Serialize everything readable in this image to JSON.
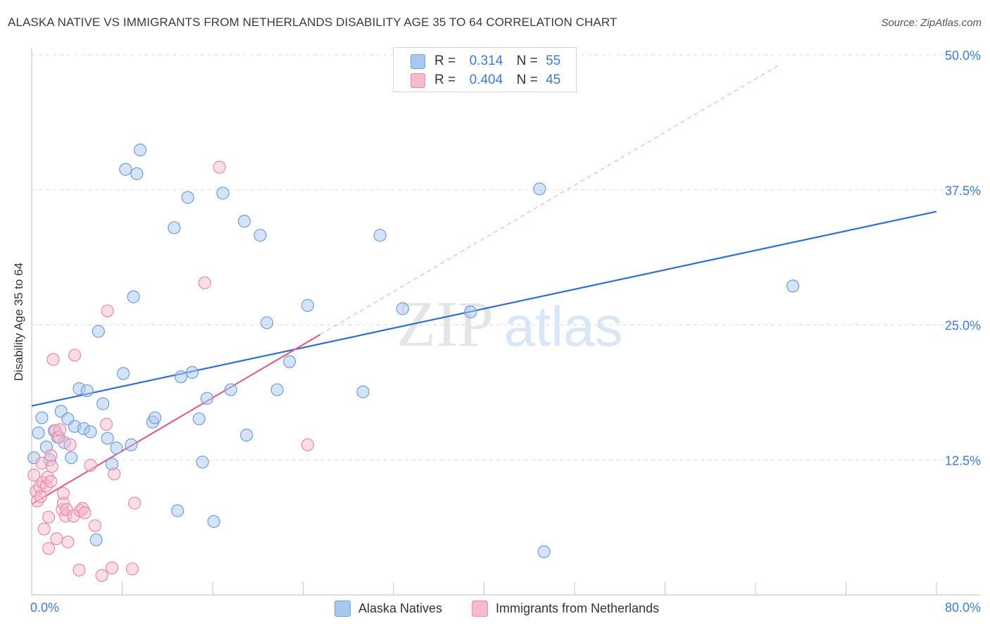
{
  "title": "ALASKA NATIVE VS IMMIGRANTS FROM NETHERLANDS DISABILITY AGE 35 TO 64 CORRELATION CHART",
  "source": "Source: ZipAtlas.com",
  "watermark": {
    "zip": "ZIP",
    "atlas": "atlas"
  },
  "legend_top": {
    "rows": [
      {
        "r_label": "R =",
        "r_value": "0.314",
        "n_label": "N =",
        "n_value": "55"
      },
      {
        "r_label": "R =",
        "r_value": "0.404",
        "n_label": "N =",
        "n_value": "45"
      }
    ]
  },
  "legend_bottom": {
    "items": [
      {
        "label": "Alaska Natives"
      },
      {
        "label": "Immigrants from Netherlands"
      }
    ]
  },
  "chart_data": {
    "type": "scatter",
    "title": "ALASKA NATIVE VS IMMIGRANTS FROM NETHERLANDS DISABILITY AGE 35 TO 64 CORRELATION CHART",
    "xlabel": "",
    "ylabel": "Disability Age 35 to 64",
    "xlim": [
      0,
      80
    ],
    "ylim": [
      0,
      50
    ],
    "x_tick_labels": [
      "0.0%",
      "80.0%"
    ],
    "y_tick_labels": [
      "12.5%",
      "25.0%",
      "37.5%",
      "50.0%"
    ],
    "y_ticks": [
      12.5,
      25.0,
      37.5,
      50.0
    ],
    "x_minor_ticks": [
      8,
      16,
      24,
      32,
      40,
      48,
      56,
      64,
      72,
      80
    ],
    "grid": true,
    "legend_position": "bottom",
    "series": [
      {
        "name": "Alaska Natives",
        "color": "#a9c8ef",
        "stroke": "#6e9fd9",
        "trend_color": "#2e6fd0",
        "r": "0.314",
        "n": "55",
        "trend": {
          "x": [
            0,
            80
          ],
          "y": [
            17.5,
            35.5
          ]
        },
        "points": [
          [
            0.2,
            12.7
          ],
          [
            0.6,
            15.0
          ],
          [
            0.9,
            16.4
          ],
          [
            1.3,
            13.7
          ],
          [
            1.6,
            12.5
          ],
          [
            2.0,
            15.2
          ],
          [
            2.3,
            14.6
          ],
          [
            2.6,
            17.0
          ],
          [
            2.9,
            14.1
          ],
          [
            3.2,
            16.3
          ],
          [
            3.5,
            12.7
          ],
          [
            3.8,
            15.6
          ],
          [
            4.2,
            19.1
          ],
          [
            4.6,
            15.4
          ],
          [
            4.9,
            18.9
          ],
          [
            5.2,
            15.1
          ],
          [
            5.7,
            5.1
          ],
          [
            5.9,
            24.4
          ],
          [
            6.3,
            17.7
          ],
          [
            6.7,
            14.5
          ],
          [
            7.1,
            12.1
          ],
          [
            7.5,
            13.6
          ],
          [
            8.1,
            20.5
          ],
          [
            8.3,
            39.4
          ],
          [
            8.8,
            13.9
          ],
          [
            9.0,
            27.6
          ],
          [
            9.3,
            39.0
          ],
          [
            9.6,
            41.2
          ],
          [
            10.7,
            16.0
          ],
          [
            10.9,
            16.4
          ],
          [
            12.6,
            34.0
          ],
          [
            12.9,
            7.8
          ],
          [
            13.2,
            20.2
          ],
          [
            13.8,
            36.8
          ],
          [
            14.2,
            20.6
          ],
          [
            14.8,
            16.3
          ],
          [
            15.1,
            12.3
          ],
          [
            15.5,
            18.2
          ],
          [
            16.1,
            6.8
          ],
          [
            16.9,
            37.2
          ],
          [
            17.6,
            19.0
          ],
          [
            18.8,
            34.6
          ],
          [
            19.0,
            14.8
          ],
          [
            20.2,
            33.3
          ],
          [
            20.8,
            25.2
          ],
          [
            21.7,
            19.0
          ],
          [
            22.8,
            21.6
          ],
          [
            24.4,
            26.8
          ],
          [
            29.3,
            18.8
          ],
          [
            30.8,
            33.3
          ],
          [
            32.8,
            26.5
          ],
          [
            38.8,
            26.2
          ],
          [
            44.9,
            37.6
          ],
          [
            45.3,
            4.0
          ],
          [
            67.3,
            28.6
          ]
        ]
      },
      {
        "name": "Immigrants from Netherlands",
        "color": "#f6bccd",
        "stroke": "#e98aa8",
        "trend_color": "#e0608a",
        "r": "0.404",
        "n": "45",
        "trend": {
          "x": [
            0,
            25.5
          ],
          "y": [
            8.4,
            24.1
          ]
        },
        "trend_extension": {
          "x": [
            25.5,
            66.0
          ],
          "y": [
            24.1,
            49.0
          ]
        },
        "points": [
          [
            0.2,
            11.1
          ],
          [
            0.4,
            9.6
          ],
          [
            0.5,
            8.7
          ],
          [
            0.7,
            10.0
          ],
          [
            0.8,
            9.1
          ],
          [
            0.9,
            12.2
          ],
          [
            1.0,
            10.4
          ],
          [
            1.1,
            6.1
          ],
          [
            1.3,
            10.1
          ],
          [
            1.4,
            10.9
          ],
          [
            1.5,
            7.2
          ],
          [
            1.5,
            4.3
          ],
          [
            1.7,
            10.5
          ],
          [
            1.7,
            12.9
          ],
          [
            1.8,
            11.9
          ],
          [
            1.9,
            21.8
          ],
          [
            2.1,
            15.2
          ],
          [
            2.2,
            5.2
          ],
          [
            2.4,
            14.6
          ],
          [
            2.5,
            15.3
          ],
          [
            2.7,
            7.9
          ],
          [
            2.8,
            8.5
          ],
          [
            2.8,
            9.4
          ],
          [
            3.0,
            7.3
          ],
          [
            3.1,
            7.9
          ],
          [
            3.2,
            4.9
          ],
          [
            3.4,
            13.9
          ],
          [
            3.7,
            7.3
          ],
          [
            3.8,
            22.2
          ],
          [
            4.2,
            2.3
          ],
          [
            4.3,
            7.8
          ],
          [
            4.5,
            8.0
          ],
          [
            4.7,
            7.6
          ],
          [
            5.2,
            12.0
          ],
          [
            5.6,
            6.4
          ],
          [
            6.2,
            1.8
          ],
          [
            6.6,
            15.8
          ],
          [
            6.7,
            26.3
          ],
          [
            7.1,
            2.5
          ],
          [
            7.3,
            11.2
          ],
          [
            8.9,
            2.4
          ],
          [
            9.1,
            8.5
          ],
          [
            15.3,
            28.9
          ],
          [
            16.6,
            39.6
          ],
          [
            24.4,
            13.9
          ]
        ]
      }
    ]
  }
}
